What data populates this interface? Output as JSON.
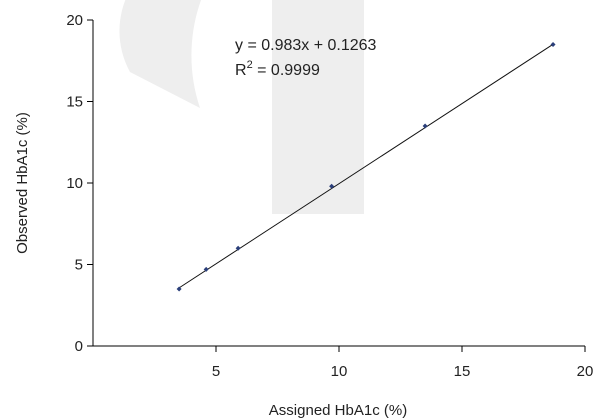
{
  "chart_data": {
    "type": "scatter",
    "xlabel": "Assigned HbA1c (%)",
    "ylabel": "Observed HbA1c (%)",
    "xlim": [
      0,
      20
    ],
    "ylim": [
      0,
      20
    ],
    "x_ticks": [
      5,
      10,
      15,
      20
    ],
    "y_ticks": [
      0,
      5,
      10,
      15,
      20
    ],
    "grid": false,
    "series": [
      {
        "x": [
          3.5,
          4.6,
          5.9,
          9.7,
          13.5,
          18.7
        ],
        "y": [
          3.5,
          4.7,
          6.0,
          9.8,
          13.5,
          18.5
        ],
        "marker_color": "#2b3f7a"
      }
    ],
    "trendline": {
      "slope": 0.983,
      "intercept": 0.1263,
      "x_range": [
        3.5,
        18.7
      ],
      "color": "#111111"
    },
    "annotations": {
      "equation": "y = 0.983x + 0.1263",
      "r2_base": "R",
      "r2_exp": "2",
      "r2_value": " = 0.9999"
    },
    "watermark_color": "#eeeeee"
  }
}
